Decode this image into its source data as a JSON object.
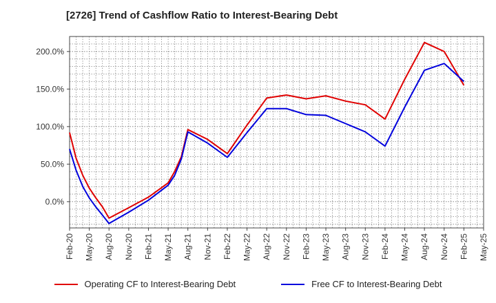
{
  "chart_data": {
    "type": "line",
    "title": "[2726]  Trend of Cashflow Ratio to Interest-Bearing Debt",
    "xlabel": "",
    "ylabel": "",
    "x_ticks": [
      "Feb-20",
      "May-20",
      "Aug-20",
      "Nov-20",
      "Feb-21",
      "May-21",
      "Aug-21",
      "Nov-21",
      "Feb-22",
      "May-22",
      "Aug-22",
      "Nov-22",
      "Feb-23",
      "May-23",
      "Aug-23",
      "Nov-23",
      "Feb-24",
      "May-24",
      "Aug-24",
      "Nov-24",
      "Feb-25",
      "May-25"
    ],
    "y_ticks": [
      "0.0%",
      "50.0%",
      "100.0%",
      "150.0%",
      "200.0%"
    ],
    "y_tick_values": [
      0,
      50,
      100,
      150,
      200
    ],
    "ylim": [
      -35,
      220
    ],
    "grid": true,
    "legend_position": "bottom",
    "series": [
      {
        "name": "Operating CF to Interest-Bearing Debt",
        "color": "#e00000",
        "x": [
          0,
          0.33,
          0.67,
          1,
          1.33,
          1.67,
          2,
          3,
          4,
          5,
          5.33,
          5.67,
          6,
          7,
          8,
          9,
          10,
          11,
          12,
          13,
          14,
          15,
          16,
          17,
          18,
          19,
          20
        ],
        "y": [
          92,
          58,
          35,
          18,
          5,
          -7,
          -22,
          -8,
          6,
          25,
          40,
          60,
          96,
          83,
          64,
          102,
          138,
          142,
          137,
          141,
          134,
          129,
          110,
          163,
          212,
          200,
          155
        ]
      },
      {
        "name": "Free CF to Interest-Bearing Debt",
        "color": "#0000dd",
        "x": [
          0,
          0.33,
          0.67,
          1,
          1.33,
          1.67,
          2,
          3,
          4,
          5,
          5.33,
          5.67,
          6,
          7,
          8,
          9,
          10,
          11,
          12,
          13,
          14,
          15,
          16,
          17,
          18,
          19,
          20
        ],
        "y": [
          70,
          42,
          20,
          5,
          -7,
          -18,
          -29,
          -14,
          2,
          22,
          35,
          57,
          93,
          78,
          59,
          92,
          124,
          124,
          116,
          115,
          104,
          93,
          74,
          126,
          175,
          184,
          160
        ]
      }
    ]
  }
}
